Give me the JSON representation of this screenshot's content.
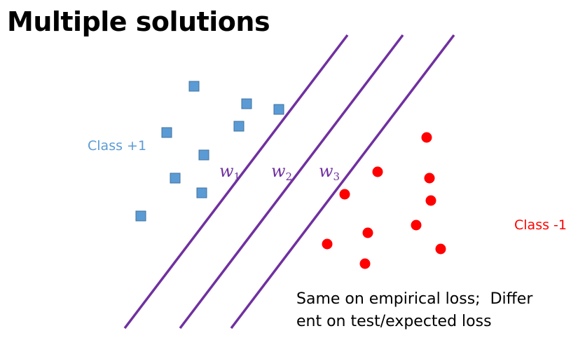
{
  "title": "Multiple solutions",
  "class_pos": {
    "label": "Class +1",
    "color": "#5B9BD5"
  },
  "class_neg": {
    "label": "Class -1",
    "color": "#FF0000"
  },
  "boundary_color": "#7030A0",
  "weights": [
    {
      "symbol": "w",
      "subscript": "1"
    },
    {
      "symbol": "w",
      "subscript": "2"
    },
    {
      "symbol": "w",
      "subscript": "3"
    }
  ],
  "caption": {
    "line1": "Same on empirical loss;  Differ",
    "line2": "ent on test/expected loss"
  }
}
